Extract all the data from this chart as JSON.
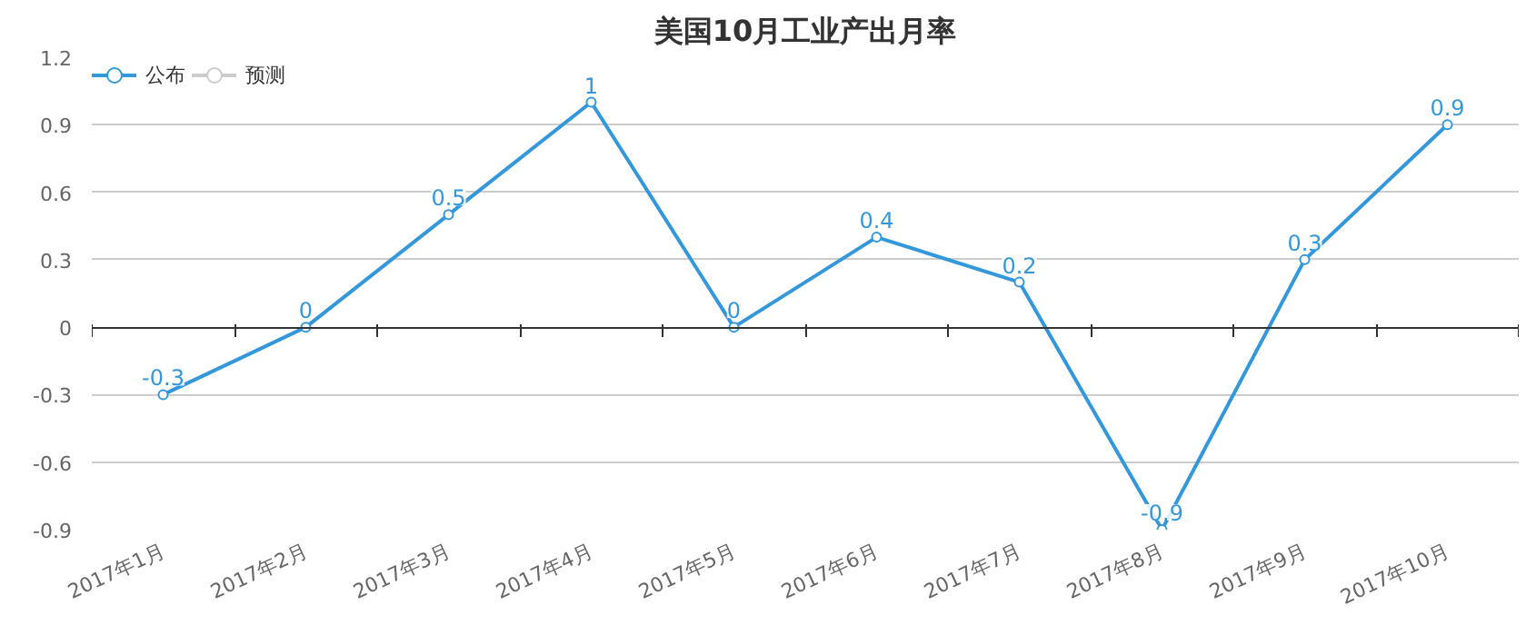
{
  "chart_data": {
    "type": "line",
    "title": "美国10月工业产出月率",
    "categories": [
      "2017年1月",
      "2017年2月",
      "2017年3月",
      "2017年4月",
      "2017年5月",
      "2017年6月",
      "2017年7月",
      "2017年8月",
      "2017年9月",
      "2017年10月"
    ],
    "series": [
      {
        "name": "公布",
        "color": "#3398db",
        "values": [
          -0.3,
          0,
          0.5,
          1,
          0,
          0.4,
          0.2,
          -0.9,
          0.3,
          0.9
        ]
      },
      {
        "name": "预测",
        "color": "#cccccc",
        "values": [
          null,
          null,
          null,
          null,
          null,
          null,
          null,
          null,
          null,
          null
        ]
      }
    ],
    "ylim": [
      -0.9,
      1.2
    ],
    "yticks": [
      -0.9,
      -0.6,
      -0.3,
      0,
      0.3,
      0.6,
      0.9,
      1.2
    ],
    "grid": "y",
    "legend": "top left",
    "marker": "circle",
    "line_style": "solid",
    "data_labels": true
  }
}
